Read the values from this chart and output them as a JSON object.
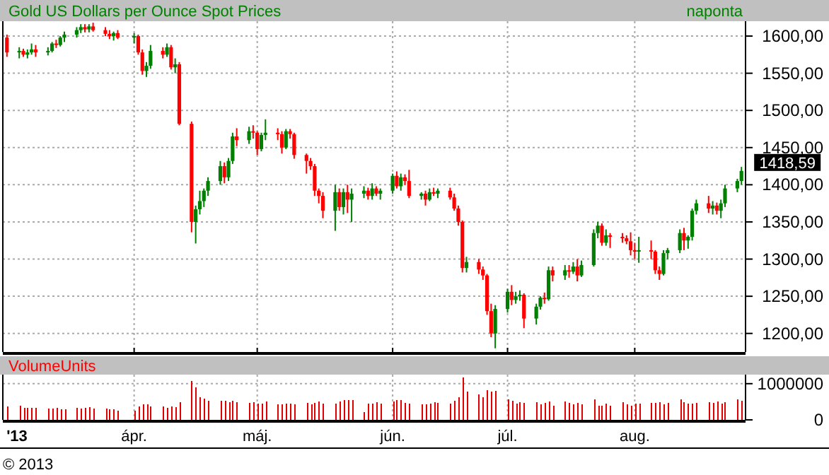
{
  "chart_data": [
    {
      "type": "candlestick",
      "title": "Gold US Dollars per Ounce Spot Prices",
      "subtitle": "naponta",
      "x": [
        "2013-03-01",
        "2013-03-04",
        "2013-03-05",
        "2013-03-06",
        "2013-03-07",
        "2013-03-08",
        "2013-03-11",
        "2013-03-12",
        "2013-03-13",
        "2013-03-14",
        "2013-03-15",
        "2013-03-18",
        "2013-03-19",
        "2013-03-20",
        "2013-03-21",
        "2013-03-22",
        "2013-03-25",
        "2013-03-26",
        "2013-03-27",
        "2013-03-28",
        "2013-04-01",
        "2013-04-02",
        "2013-04-03",
        "2013-04-04",
        "2013-04-05",
        "2013-04-08",
        "2013-04-09",
        "2013-04-10",
        "2013-04-11",
        "2013-04-12",
        "2013-04-15",
        "2013-04-16",
        "2013-04-17",
        "2013-04-18",
        "2013-04-19",
        "2013-04-22",
        "2013-04-23",
        "2013-04-24",
        "2013-04-25",
        "2013-04-26",
        "2013-04-29",
        "2013-04-30",
        "2013-05-01",
        "2013-05-02",
        "2013-05-03",
        "2013-05-06",
        "2013-05-07",
        "2013-05-08",
        "2013-05-09",
        "2013-05-10",
        "2013-05-13",
        "2013-05-14",
        "2013-05-15",
        "2013-05-16",
        "2013-05-17",
        "2013-05-20",
        "2013-05-21",
        "2013-05-22",
        "2013-05-23",
        "2013-05-24",
        "2013-05-27",
        "2013-05-28",
        "2013-05-29",
        "2013-05-30",
        "2013-05-31",
        "2013-06-03",
        "2013-06-04",
        "2013-06-05",
        "2013-06-06",
        "2013-06-07",
        "2013-06-10",
        "2013-06-11",
        "2013-06-12",
        "2013-06-13",
        "2013-06-14",
        "2013-06-17",
        "2013-06-18",
        "2013-06-19",
        "2013-06-20",
        "2013-06-21",
        "2013-06-24",
        "2013-06-25",
        "2013-06-26",
        "2013-06-27",
        "2013-06-28",
        "2013-07-01",
        "2013-07-02",
        "2013-07-03",
        "2013-07-04",
        "2013-07-05",
        "2013-07-08",
        "2013-07-09",
        "2013-07-10",
        "2013-07-11",
        "2013-07-12",
        "2013-07-15",
        "2013-07-16",
        "2013-07-17",
        "2013-07-18",
        "2013-07-19",
        "2013-07-22",
        "2013-07-23",
        "2013-07-24",
        "2013-07-25",
        "2013-07-26",
        "2013-07-29",
        "2013-07-30",
        "2013-07-31",
        "2013-08-01",
        "2013-08-02",
        "2013-08-05",
        "2013-08-06",
        "2013-08-07",
        "2013-08-08",
        "2013-08-09",
        "2013-08-12",
        "2013-08-13",
        "2013-08-14",
        "2013-08-15",
        "2013-08-16",
        "2013-08-19",
        "2013-08-20",
        "2013-08-21",
        "2013-08-22",
        "2013-08-23",
        "2013-08-26",
        "2013-08-27"
      ],
      "ohlc": [
        [
          1598,
          1602,
          1572,
          1578
        ],
        [
          1578,
          1585,
          1570,
          1580
        ],
        [
          1580,
          1583,
          1572,
          1575
        ],
        [
          1575,
          1582,
          1570,
          1578
        ],
        [
          1578,
          1590,
          1575,
          1582
        ],
        [
          1582,
          1588,
          1572,
          1578
        ],
        [
          1578,
          1585,
          1574,
          1580
        ],
        [
          1580,
          1592,
          1578,
          1590
        ],
        [
          1590,
          1595,
          1584,
          1588
        ],
        [
          1588,
          1600,
          1586,
          1598
        ],
        [
          1598,
          1606,
          1592,
          1602
        ],
        [
          1602,
          1612,
          1598,
          1608
        ],
        [
          1608,
          1616,
          1604,
          1612
        ],
        [
          1612,
          1616,
          1605,
          1609
        ],
        [
          1609,
          1616,
          1605,
          1613
        ],
        [
          1613,
          1618,
          1606,
          1608
        ],
        [
          1608,
          1612,
          1600,
          1603
        ],
        [
          1603,
          1608,
          1596,
          1600
        ],
        [
          1600,
          1606,
          1594,
          1604
        ],
        [
          1604,
          1608,
          1596,
          1598
        ],
        [
          1598,
          1604,
          1590,
          1600
        ],
        [
          1600,
          1602,
          1575,
          1578
        ],
        [
          1578,
          1582,
          1548,
          1553
        ],
        [
          1553,
          1565,
          1545,
          1560
        ],
        [
          1560,
          1588,
          1556,
          1580
        ],
        [
          1580,
          1585,
          1570,
          1575
        ],
        [
          1575,
          1590,
          1572,
          1585
        ],
        [
          1585,
          1588,
          1555,
          1558
        ],
        [
          1558,
          1570,
          1550,
          1562
        ],
        [
          1562,
          1565,
          1480,
          1482
        ],
        [
          1482,
          1485,
          1336,
          1350
        ],
        [
          1350,
          1372,
          1321,
          1367
        ],
        [
          1367,
          1392,
          1360,
          1378
        ],
        [
          1378,
          1395,
          1370,
          1392
        ],
        [
          1392,
          1410,
          1385,
          1405
        ],
        [
          1405,
          1432,
          1400,
          1425
        ],
        [
          1425,
          1430,
          1402,
          1410
        ],
        [
          1410,
          1436,
          1405,
          1432
        ],
        [
          1432,
          1470,
          1428,
          1465
        ],
        [
          1465,
          1476,
          1452,
          1460
        ],
        [
          1460,
          1478,
          1455,
          1472
        ],
        [
          1472,
          1480,
          1462,
          1470
        ],
        [
          1470,
          1472,
          1440,
          1448
        ],
        [
          1448,
          1470,
          1445,
          1467
        ],
        [
          1467,
          1488,
          1460,
          1470
        ],
        [
          1470,
          1476,
          1460,
          1468
        ],
        [
          1468,
          1472,
          1442,
          1450
        ],
        [
          1450,
          1475,
          1448,
          1472
        ],
        [
          1472,
          1475,
          1462,
          1468
        ],
        [
          1468,
          1470,
          1435,
          1440
        ],
        [
          1440,
          1442,
          1415,
          1432
        ],
        [
          1432,
          1436,
          1420,
          1425
        ],
        [
          1425,
          1428,
          1385,
          1392
        ],
        [
          1392,
          1395,
          1375,
          1385
        ],
        [
          1385,
          1390,
          1355,
          1365
        ],
        [
          1365,
          1400,
          1338,
          1390
        ],
        [
          1390,
          1395,
          1365,
          1370
        ],
        [
          1370,
          1395,
          1360,
          1390
        ],
        [
          1390,
          1400,
          1362,
          1380
        ],
        [
          1380,
          1395,
          1350,
          1388
        ],
        [
          1388,
          1398,
          1382,
          1392
        ],
        [
          1392,
          1396,
          1380,
          1385
        ],
        [
          1385,
          1402,
          1380,
          1395
        ],
        [
          1395,
          1398,
          1385,
          1388
        ],
        [
          1388,
          1395,
          1380,
          1392
        ],
        [
          1392,
          1415,
          1388,
          1412
        ],
        [
          1412,
          1418,
          1395,
          1398
        ],
        [
          1398,
          1415,
          1392,
          1410
        ],
        [
          1410,
          1414,
          1400,
          1405
        ],
        [
          1405,
          1420,
          1382,
          1385
        ],
        [
          1385,
          1390,
          1380,
          1388
        ],
        [
          1388,
          1392,
          1372,
          1380
        ],
        [
          1380,
          1395,
          1378,
          1390
        ],
        [
          1390,
          1396,
          1385,
          1388
        ],
        [
          1388,
          1395,
          1382,
          1392
        ],
        [
          1392,
          1396,
          1380,
          1383
        ],
        [
          1383,
          1388,
          1365,
          1368
        ],
        [
          1368,
          1372,
          1345,
          1350
        ],
        [
          1350,
          1352,
          1282,
          1288
        ],
        [
          1288,
          1303,
          1282,
          1296
        ],
        [
          1296,
          1300,
          1280,
          1286
        ],
        [
          1286,
          1290,
          1272,
          1278
        ],
        [
          1278,
          1280,
          1225,
          1230
        ],
        [
          1230,
          1240,
          1195,
          1200
        ],
        [
          1200,
          1238,
          1180,
          1233
        ],
        [
          1233,
          1260,
          1228,
          1256
        ],
        [
          1256,
          1265,
          1238,
          1245
        ],
        [
          1245,
          1256,
          1240,
          1250
        ],
        [
          1250,
          1258,
          1244,
          1252
        ],
        [
          1252,
          1254,
          1207,
          1220
        ],
        [
          1220,
          1240,
          1212,
          1236
        ],
        [
          1236,
          1250,
          1232,
          1248
        ],
        [
          1248,
          1255,
          1240,
          1246
        ],
        [
          1246,
          1290,
          1244,
          1285
        ],
        [
          1285,
          1290,
          1270,
          1278
        ],
        [
          1278,
          1292,
          1272,
          1285
        ],
        [
          1285,
          1292,
          1275,
          1283
        ],
        [
          1283,
          1296,
          1280,
          1290
        ],
        [
          1290,
          1300,
          1270,
          1278
        ],
        [
          1278,
          1298,
          1276,
          1292
        ],
        [
          1292,
          1340,
          1290,
          1335
        ],
        [
          1335,
          1350,
          1328,
          1345
        ],
        [
          1345,
          1348,
          1318,
          1322
        ],
        [
          1322,
          1340,
          1318,
          1332
        ],
        [
          1332,
          1335,
          1315,
          1330
        ],
        [
          1330,
          1335,
          1322,
          1328
        ],
        [
          1328,
          1332,
          1320,
          1324
        ],
        [
          1324,
          1336,
          1305,
          1312
        ],
        [
          1312,
          1322,
          1300,
          1310
        ],
        [
          1310,
          1330,
          1295,
          1312
        ],
        [
          1312,
          1325,
          1300,
          1310
        ],
        [
          1310,
          1312,
          1280,
          1285
        ],
        [
          1285,
          1290,
          1272,
          1280
        ],
        [
          1280,
          1312,
          1278,
          1308
        ],
        [
          1308,
          1315,
          1300,
          1312
        ],
        [
          1312,
          1340,
          1308,
          1335
        ],
        [
          1335,
          1342,
          1312,
          1325
        ],
        [
          1325,
          1332,
          1314,
          1330
        ],
        [
          1330,
          1368,
          1325,
          1365
        ],
        [
          1365,
          1380,
          1360,
          1375
        ],
        [
          1375,
          1385,
          1362,
          1368
        ],
        [
          1368,
          1378,
          1360,
          1372
        ],
        [
          1372,
          1376,
          1360,
          1365
        ],
        [
          1365,
          1380,
          1355,
          1375
        ],
        [
          1375,
          1400,
          1370,
          1395
        ],
        [
          1395,
          1408,
          1390,
          1405
        ],
        [
          1405,
          1424,
          1400,
          1418.59
        ]
      ],
      "xlim": [
        "2013-02-28",
        "2013-08-28"
      ],
      "xticks": [
        {
          "value": "2013-04-01",
          "label": null
        },
        {
          "value": "2013-05-01",
          "label": null
        },
        {
          "value": "2013-06-03",
          "label": null
        },
        {
          "value": "2013-07-01",
          "label": null
        },
        {
          "value": "2013-08-01",
          "label": null
        }
      ],
      "ylim": [
        1175,
        1620
      ],
      "yticks": [
        {
          "value": 1200,
          "label": "1200,00"
        },
        {
          "value": 1250,
          "label": "1250,00"
        },
        {
          "value": 1300,
          "label": "1300,00"
        },
        {
          "value": 1350,
          "label": "1350,00"
        },
        {
          "value": 1400,
          "label": "1400,00"
        },
        {
          "value": 1450,
          "label": "1450,00"
        },
        {
          "value": 1500,
          "label": "1500,00"
        },
        {
          "value": 1550,
          "label": "1550,00"
        },
        {
          "value": 1600,
          "label": "1600,00"
        }
      ],
      "grid": true,
      "tick_labels": "y",
      "annotations": [
        {
          "text": "1418,59",
          "x": "2013-08-27",
          "y": 1418.59
        },
        "© 2013"
      ]
    },
    {
      "type": "bar",
      "title": "VolumeUnits",
      "color": "#e00000",
      "x": [
        "2013-03-01",
        "2013-03-04",
        "2013-03-05",
        "2013-03-06",
        "2013-03-07",
        "2013-03-08",
        "2013-03-11",
        "2013-03-12",
        "2013-03-13",
        "2013-03-14",
        "2013-03-15",
        "2013-03-18",
        "2013-03-19",
        "2013-03-20",
        "2013-03-21",
        "2013-03-22",
        "2013-03-25",
        "2013-03-26",
        "2013-03-27",
        "2013-03-28",
        "2013-04-01",
        "2013-04-02",
        "2013-04-03",
        "2013-04-04",
        "2013-04-05",
        "2013-04-08",
        "2013-04-09",
        "2013-04-10",
        "2013-04-11",
        "2013-04-12",
        "2013-04-15",
        "2013-04-16",
        "2013-04-17",
        "2013-04-18",
        "2013-04-19",
        "2013-04-22",
        "2013-04-23",
        "2013-04-24",
        "2013-04-25",
        "2013-04-26",
        "2013-04-29",
        "2013-04-30",
        "2013-05-01",
        "2013-05-02",
        "2013-05-03",
        "2013-05-06",
        "2013-05-07",
        "2013-05-08",
        "2013-05-09",
        "2013-05-10",
        "2013-05-13",
        "2013-05-14",
        "2013-05-15",
        "2013-05-16",
        "2013-05-17",
        "2013-05-20",
        "2013-05-21",
        "2013-05-22",
        "2013-05-23",
        "2013-05-24",
        "2013-05-27",
        "2013-05-28",
        "2013-05-29",
        "2013-05-30",
        "2013-05-31",
        "2013-06-03",
        "2013-06-04",
        "2013-06-05",
        "2013-06-06",
        "2013-06-07",
        "2013-06-10",
        "2013-06-11",
        "2013-06-12",
        "2013-06-13",
        "2013-06-14",
        "2013-06-17",
        "2013-06-18",
        "2013-06-19",
        "2013-06-20",
        "2013-06-21",
        "2013-06-24",
        "2013-06-25",
        "2013-06-26",
        "2013-06-27",
        "2013-06-28",
        "2013-07-01",
        "2013-07-02",
        "2013-07-03",
        "2013-07-04",
        "2013-07-05",
        "2013-07-08",
        "2013-07-09",
        "2013-07-10",
        "2013-07-11",
        "2013-07-12",
        "2013-07-15",
        "2013-07-16",
        "2013-07-17",
        "2013-07-18",
        "2013-07-19",
        "2013-07-22",
        "2013-07-23",
        "2013-07-24",
        "2013-07-25",
        "2013-07-26",
        "2013-07-29",
        "2013-07-30",
        "2013-07-31",
        "2013-08-01",
        "2013-08-02",
        "2013-08-05",
        "2013-08-06",
        "2013-08-07",
        "2013-08-08",
        "2013-08-09",
        "2013-08-12",
        "2013-08-13",
        "2013-08-14",
        "2013-08-15",
        "2013-08-16",
        "2013-08-19",
        "2013-08-20",
        "2013-08-21",
        "2013-08-22",
        "2013-08-23",
        "2013-08-26",
        "2013-08-27"
      ],
      "values": [
        380000,
        400000,
        330000,
        330000,
        330000,
        340000,
        320000,
        310000,
        330000,
        300000,
        300000,
        330000,
        320000,
        330000,
        360000,
        320000,
        310000,
        300000,
        300000,
        250000,
        250000,
        380000,
        420000,
        430000,
        380000,
        380000,
        340000,
        380000,
        360000,
        480000,
        1080000,
        900000,
        620000,
        580000,
        520000,
        520000,
        520000,
        480000,
        520000,
        480000,
        460000,
        480000,
        450000,
        450000,
        500000,
        430000,
        430000,
        450000,
        450000,
        430000,
        460000,
        420000,
        460000,
        500000,
        450000,
        450000,
        500000,
        550000,
        550000,
        550000,
        220000,
        450000,
        450000,
        480000,
        450000,
        500000,
        550000,
        550000,
        470000,
        450000,
        430000,
        430000,
        450000,
        480000,
        470000,
        450000,
        520000,
        620000,
        1170000,
        780000,
        700000,
        630000,
        820000,
        780000,
        800000,
        560000,
        520000,
        440000,
        480000,
        460000,
        480000,
        420000,
        460000,
        500000,
        400000,
        500000,
        460000,
        430000,
        470000,
        430000,
        560000,
        400000,
        400000,
        450000,
        400000,
        480000,
        420000,
        400000,
        450000,
        450000,
        470000,
        460000,
        480000,
        420000,
        460000,
        560000,
        480000,
        450000,
        440000,
        460000,
        480000,
        460000,
        500000,
        440000,
        480000,
        560000,
        520000
      ],
      "xlim": [
        "2013-02-28",
        "2013-08-28"
      ],
      "xticks": [
        {
          "value": "2013-03-01",
          "label": "'13"
        },
        {
          "value": "2013-04-01",
          "label": "ápr."
        },
        {
          "value": "2013-05-01",
          "label": "máj."
        },
        {
          "value": "2013-06-03",
          "label": "jún."
        },
        {
          "value": "2013-07-01",
          "label": "júl."
        },
        {
          "value": "2013-08-01",
          "label": "aug."
        }
      ],
      "ylim": [
        0,
        1250000
      ],
      "yticks": [
        0,
        1000000
      ],
      "grid": true
    }
  ]
}
